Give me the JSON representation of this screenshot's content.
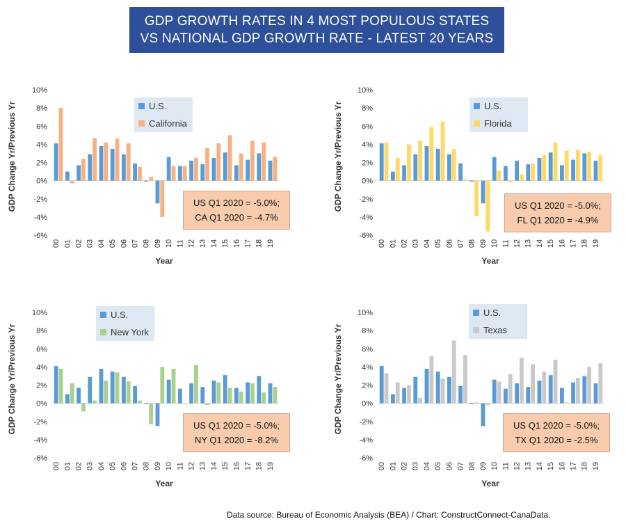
{
  "title": {
    "line1": "GDP GROWTH RATES IN 4 MOST POPULOUS STATES",
    "line2": "VS NATIONAL GDP GROWTH RATE - LATEST 20 YEARS"
  },
  "source_note": "Data source: Bureau of Economic Analysis (BEA) / Chart: ConstructConnect-CanaData.",
  "colors": {
    "us": "#5b9bd5",
    "California": "#f4b183",
    "Florida": "#ffd966",
    "New York": "#a9d18e",
    "Texas": "#c9c9c9",
    "axis": "#d0d0d0",
    "tick_text": "#333333"
  },
  "chart_data": [
    {
      "type": "bar",
      "categories": [
        "00",
        "01",
        "02",
        "03",
        "04",
        "05",
        "06",
        "07",
        "08",
        "09",
        "10",
        "11",
        "12",
        "13",
        "14",
        "15",
        "16",
        "17",
        "18",
        "19"
      ],
      "ylim": [
        -6,
        10
      ],
      "yticks": [
        "10%",
        "8%",
        "6%",
        "4%",
        "2%",
        "0%",
        "-2%",
        "-4%",
        "-6%"
      ],
      "xlabel": "Year",
      "ylabel": "GDP Change Yr/Previous Yr",
      "grid": false,
      "legend": "top-center",
      "series": [
        {
          "name": "U.S.",
          "values": [
            4.1,
            1.0,
            1.7,
            2.9,
            3.8,
            3.5,
            2.9,
            1.9,
            -0.1,
            -2.5,
            2.6,
            1.6,
            2.2,
            1.8,
            2.5,
            3.1,
            1.7,
            2.3,
            3.0,
            2.2
          ]
        },
        {
          "name": "California",
          "values": [
            8.0,
            -0.3,
            2.4,
            4.7,
            4.2,
            4.6,
            4.1,
            1.5,
            0.4,
            -4.0,
            1.6,
            1.6,
            2.5,
            3.6,
            4.1,
            5.0,
            3.0,
            4.4,
            4.2,
            2.6
          ]
        }
      ],
      "annotation": {
        "line1": "US Q1 2020 = -5.0%;",
        "line2": "CA Q1 2020 = -4.7%"
      }
    },
    {
      "type": "bar",
      "categories": [
        "00",
        "01",
        "02",
        "03",
        "04",
        "05",
        "06",
        "07",
        "08",
        "09",
        "10",
        "11",
        "12",
        "13",
        "14",
        "15",
        "16",
        "17",
        "18",
        "19"
      ],
      "ylim": [
        -6,
        10
      ],
      "yticks": [
        "10%",
        "8%",
        "6%",
        "4%",
        "2%",
        "0%",
        "-2%",
        "-4%",
        "-6%"
      ],
      "xlabel": "Year",
      "ylabel": "GDP Change Yr/Previous Yr",
      "grid": false,
      "legend": "top-right",
      "series": [
        {
          "name": "U.S.",
          "values": [
            4.1,
            1.0,
            1.7,
            2.9,
            3.8,
            3.5,
            2.9,
            1.9,
            -0.1,
            -2.5,
            2.6,
            1.6,
            2.2,
            1.8,
            2.5,
            3.1,
            1.7,
            2.3,
            3.0,
            2.2
          ]
        },
        {
          "name": "Florida",
          "values": [
            4.2,
            2.5,
            4.0,
            4.4,
            5.9,
            6.5,
            3.5,
            0.1,
            -3.9,
            -5.6,
            1.1,
            -0.2,
            0.7,
            1.9,
            2.8,
            4.2,
            3.3,
            3.4,
            3.2,
            2.8
          ]
        }
      ],
      "annotation": {
        "line1": "US Q1 2020 = -5.0%;",
        "line2": "FL Q1 2020 = -4.9%"
      }
    },
    {
      "type": "bar",
      "categories": [
        "00",
        "01",
        "02",
        "03",
        "04",
        "05",
        "06",
        "07",
        "08",
        "09",
        "10",
        "11",
        "12",
        "13",
        "14",
        "15",
        "16",
        "17",
        "18",
        "19"
      ],
      "ylim": [
        -6,
        10
      ],
      "yticks": [
        "10%",
        "8%",
        "6%",
        "4%",
        "2%",
        "0%",
        "-2%",
        "-4%",
        "-6%"
      ],
      "xlabel": "Year",
      "ylabel": "GDP Change Yr/Previous Yr",
      "grid": false,
      "legend": "top-left",
      "series": [
        {
          "name": "U.S.",
          "values": [
            4.1,
            1.0,
            1.7,
            2.9,
            3.8,
            3.5,
            2.9,
            1.9,
            -0.1,
            -2.5,
            2.6,
            1.6,
            2.2,
            1.8,
            2.5,
            3.1,
            1.7,
            2.3,
            3.0,
            2.2
          ]
        },
        {
          "name": "New York",
          "values": [
            3.8,
            2.2,
            -0.9,
            0.3,
            2.5,
            3.4,
            2.4,
            0.3,
            -2.3,
            4.0,
            3.8,
            0.0,
            4.2,
            -0.2,
            2.3,
            1.7,
            1.3,
            2.2,
            1.2,
            1.8
          ]
        }
      ],
      "annotation": {
        "line1": "US Q1 2020 = -5.0%;",
        "line2": "NY Q1 2020 = -8.2%"
      }
    },
    {
      "type": "bar",
      "categories": [
        "00",
        "01",
        "02",
        "03",
        "04",
        "05",
        "06",
        "07",
        "08",
        "09",
        "10",
        "11",
        "12",
        "13",
        "14",
        "15",
        "16",
        "17",
        "18",
        "19"
      ],
      "ylim": [
        -6,
        10
      ],
      "yticks": [
        "10%",
        "8%",
        "6%",
        "4%",
        "2%",
        "0%",
        "-2%",
        "-4%",
        "-6%"
      ],
      "xlabel": "Year",
      "ylabel": "GDP Change Yr/Previous Yr",
      "grid": false,
      "legend": "top-center",
      "series": [
        {
          "name": "U.S.",
          "values": [
            4.1,
            1.0,
            1.7,
            2.9,
            3.8,
            3.5,
            2.9,
            1.9,
            -0.1,
            -2.5,
            2.6,
            1.6,
            2.2,
            1.8,
            2.5,
            3.1,
            1.7,
            2.3,
            3.0,
            2.2
          ]
        },
        {
          "name": "Texas",
          "values": [
            3.3,
            2.3,
            2.0,
            0.6,
            5.2,
            2.7,
            6.9,
            5.3,
            0.1,
            -0.2,
            2.4,
            3.2,
            5.0,
            4.3,
            3.5,
            4.8,
            0.1,
            2.8,
            4.0,
            4.4
          ]
        }
      ],
      "annotation": {
        "line1": "US Q1 2020 = -5.0%;",
        "line2": "TX Q1 2020 = -2.5%"
      }
    }
  ]
}
